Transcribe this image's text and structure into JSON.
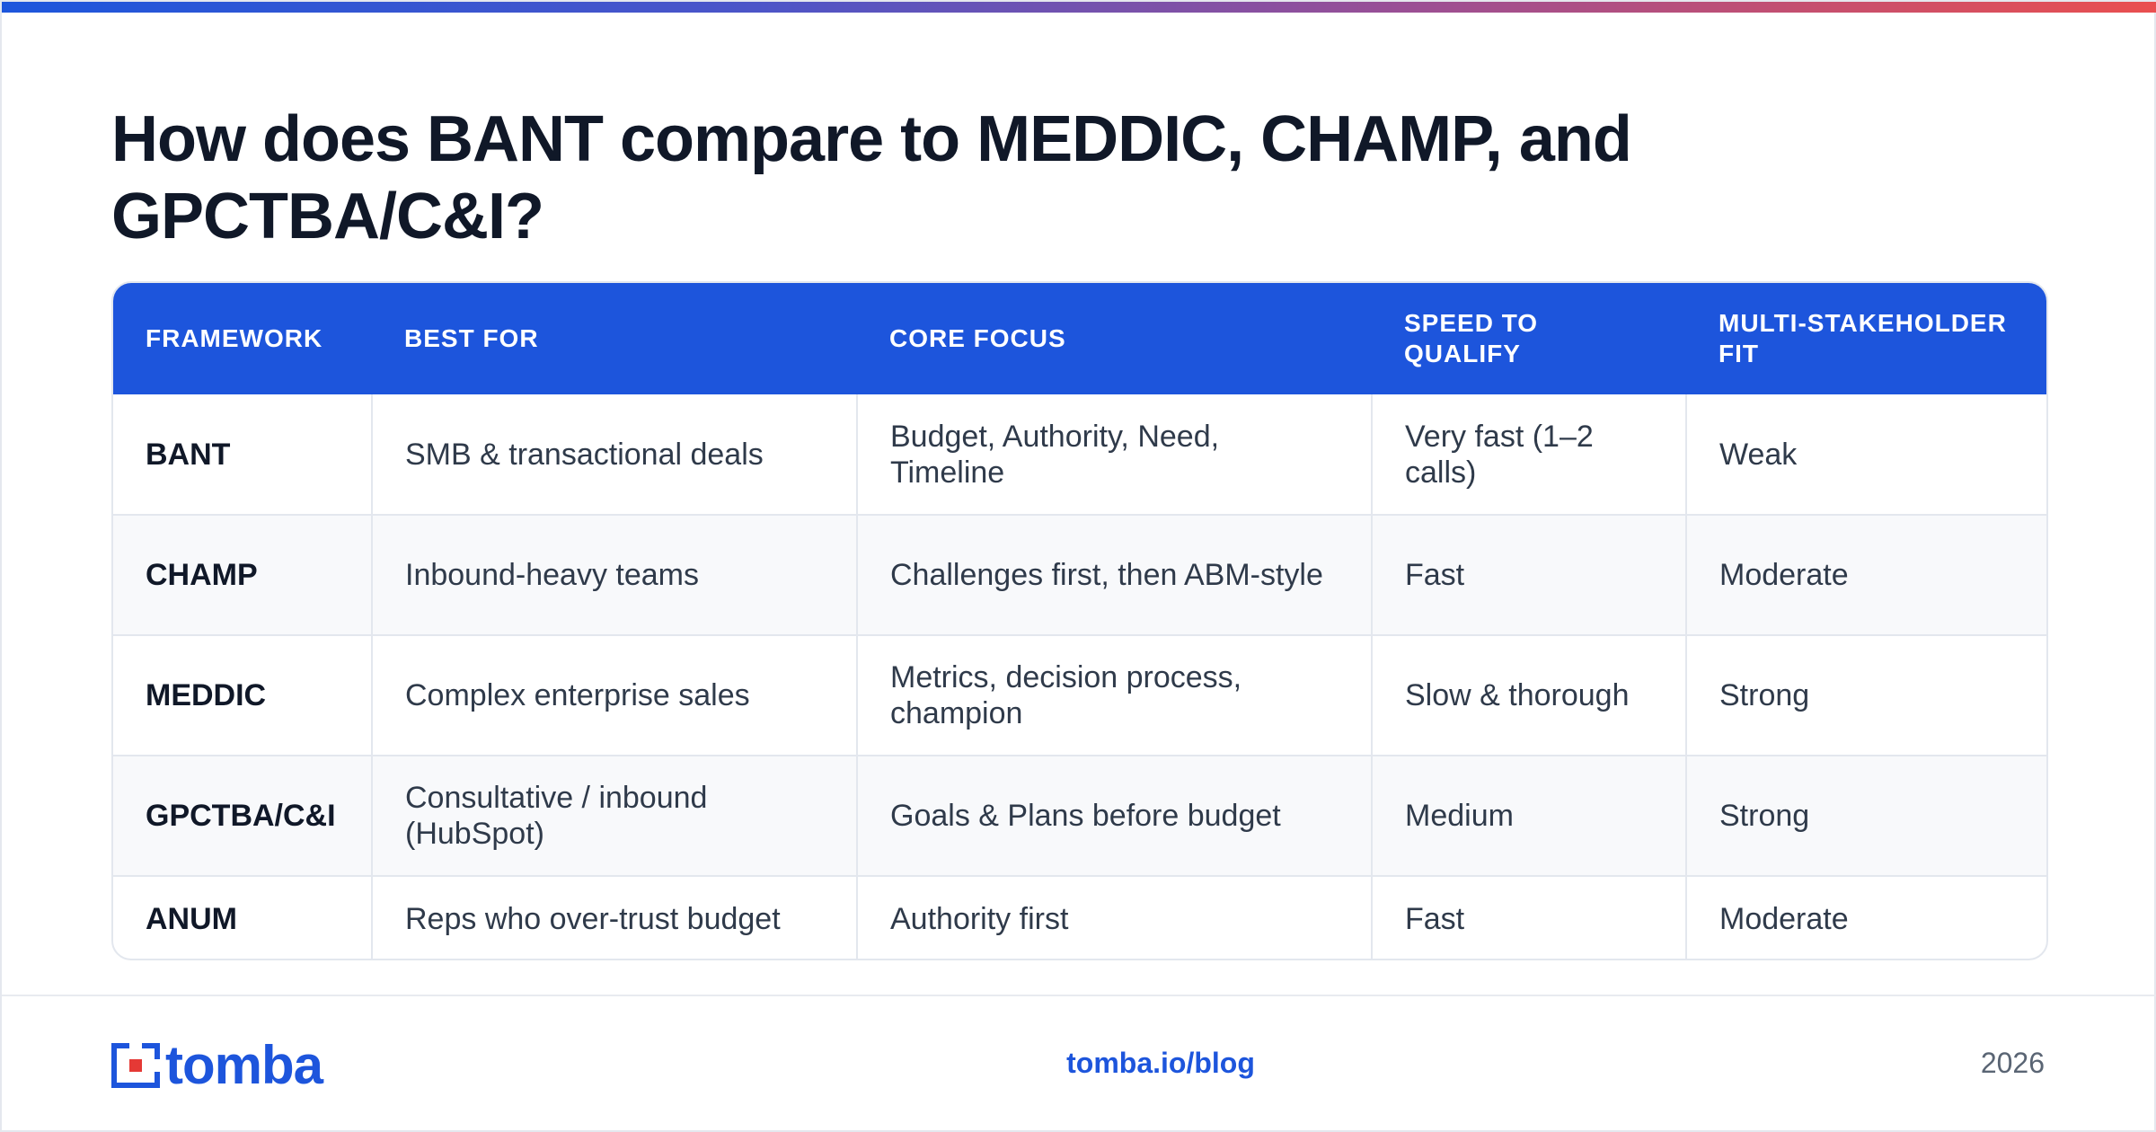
{
  "title": "How does BANT compare to MEDDIC, CHAMP, and GPCTBA/C&I?",
  "table": {
    "headers": [
      "FRAMEWORK",
      "BEST FOR",
      "CORE FOCUS",
      "SPEED TO QUALIFY",
      "MULTI-STAKEHOLDER FIT"
    ],
    "rows": [
      [
        "BANT",
        "SMB & transactional deals",
        "Budget, Authority, Need, Timeline",
        "Very fast (1–2 calls)",
        "Weak"
      ],
      [
        "CHAMP",
        "Inbound-heavy teams",
        "Challenges first, then ABM-style",
        "Fast",
        "Moderate"
      ],
      [
        "MEDDIC",
        "Complex enterprise sales",
        "Metrics, decision process, champion",
        "Slow & thorough",
        "Strong"
      ],
      [
        "GPCTBA/C&I",
        "Consultative / inbound (HubSpot)",
        "Goals & Plans before budget",
        "Medium",
        "Strong"
      ],
      [
        "ANUM",
        "Reps who over-trust budget",
        "Authority first",
        "Fast",
        "Moderate"
      ]
    ]
  },
  "footer": {
    "logo_text": "tomba",
    "link": "tomba.io/blog",
    "year": "2026"
  },
  "colors": {
    "accent": "#1d55dc",
    "logo_red": "#e53935",
    "title": "#101828",
    "gradient": [
      "#1d56dc",
      "#ea4f4f"
    ]
  }
}
